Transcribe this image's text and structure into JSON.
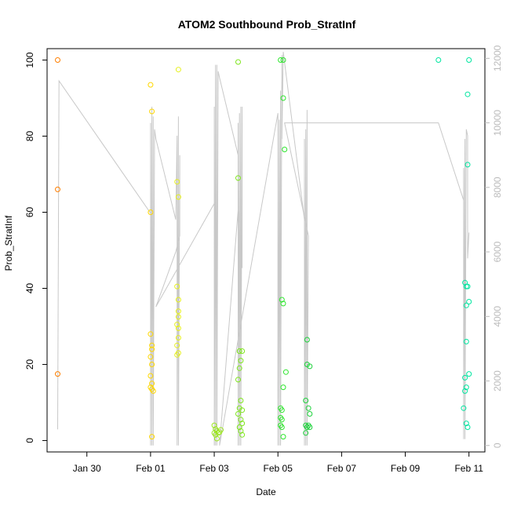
{
  "chart_data": {
    "type": "scatter",
    "title": "ATOM2 Southbound Prob_StratInf",
    "xlabel": "Date",
    "ylabel": "Prob_StratInf",
    "x_ticks": [
      "Jan 30",
      "Feb 01",
      "Feb 03",
      "Feb 05",
      "Feb 07",
      "Feb 09",
      "Feb 11"
    ],
    "y_ticks": [
      0,
      20,
      40,
      60,
      80,
      100
    ],
    "y2_ticks": [
      0,
      2000,
      4000,
      6000,
      8000,
      10000,
      12000
    ],
    "xlim": [
      "2017-01-28T18:00",
      "2017-02-11T12:00"
    ],
    "ylim": [
      -3,
      103
    ],
    "y2lim": [
      -200,
      12300
    ],
    "point_series": [
      {
        "color": "#FF7F00",
        "points": [
          [
            "2017-01-29T02:00",
            100
          ],
          [
            "2017-01-29T02:00",
            66
          ],
          [
            "2017-01-29T02:00",
            17.5
          ]
        ]
      },
      {
        "color": "#FFD700",
        "points": [
          [
            "2017-02-01T00:00",
            93.5
          ],
          [
            "2017-02-01T01:00",
            86.5
          ],
          [
            "2017-02-01T00:00",
            60
          ],
          [
            "2017-02-01T00:00",
            28
          ],
          [
            "2017-02-01T01:00",
            25
          ],
          [
            "2017-02-01T01:00",
            24
          ],
          [
            "2017-02-01T00:00",
            22
          ],
          [
            "2017-02-01T01:00",
            20
          ],
          [
            "2017-02-01T00:00",
            17
          ],
          [
            "2017-02-01T01:00",
            15
          ],
          [
            "2017-02-01T00:00",
            14
          ],
          [
            "2017-02-01T01:00",
            13.5
          ],
          [
            "2017-02-01T02:00",
            13
          ],
          [
            "2017-02-01T01:00",
            1
          ]
        ]
      },
      {
        "color": "#E6F01E",
        "points": [
          [
            "2017-02-01T21:00",
            97.5
          ],
          [
            "2017-02-01T20:00",
            68
          ],
          [
            "2017-02-01T21:00",
            64
          ],
          [
            "2017-02-01T20:00",
            40.5
          ],
          [
            "2017-02-01T21:00",
            37
          ],
          [
            "2017-02-01T21:00",
            34
          ],
          [
            "2017-02-01T21:00",
            32.5
          ],
          [
            "2017-02-01T20:00",
            30.5
          ],
          [
            "2017-02-01T21:00",
            29.5
          ],
          [
            "2017-02-01T20:00",
            25
          ],
          [
            "2017-02-01T21:00",
            23
          ],
          [
            "2017-02-01T20:00",
            22.5
          ],
          [
            "2017-02-01T21:00",
            27
          ]
        ]
      },
      {
        "color": "#9BE61E",
        "points": [
          [
            "2017-02-03T00:00",
            4
          ],
          [
            "2017-02-03T01:00",
            3
          ],
          [
            "2017-02-03T02:00",
            2.5
          ],
          [
            "2017-02-03T03:00",
            2
          ],
          [
            "2017-02-03T01:00",
            1.5
          ],
          [
            "2017-02-03T00:00",
            2
          ],
          [
            "2017-02-03T04:00",
            2.2
          ],
          [
            "2017-02-03T02:00",
            0.5
          ],
          [
            "2017-02-03T05:00",
            2.8
          ]
        ]
      },
      {
        "color": "#7FE61E",
        "points": [
          [
            "2017-02-03T18:00",
            99.5
          ],
          [
            "2017-02-03T18:00",
            69
          ],
          [
            "2017-02-03T19:00",
            23.5
          ],
          [
            "2017-02-03T21:00",
            23.5
          ],
          [
            "2017-02-03T20:00",
            21
          ],
          [
            "2017-02-03T19:00",
            19
          ],
          [
            "2017-02-03T18:00",
            16
          ],
          [
            "2017-02-03T20:00",
            10.5
          ],
          [
            "2017-02-03T19:00",
            8.5
          ],
          [
            "2017-02-03T21:00",
            8
          ],
          [
            "2017-02-03T18:00",
            7
          ],
          [
            "2017-02-03T20:00",
            5.5
          ],
          [
            "2017-02-03T21:00",
            4.5
          ],
          [
            "2017-02-03T19:00",
            3.5
          ],
          [
            "2017-02-03T20:00",
            2.5
          ],
          [
            "2017-02-03T21:00",
            1.5
          ]
        ]
      },
      {
        "color": "#2EE62E",
        "points": [
          [
            "2017-02-05T02:00",
            100
          ],
          [
            "2017-02-05T04:00",
            100
          ],
          [
            "2017-02-05T04:00",
            90
          ],
          [
            "2017-02-05T05:00",
            76.5
          ],
          [
            "2017-02-05T03:00",
            37
          ],
          [
            "2017-02-05T04:00",
            36
          ],
          [
            "2017-02-05T06:00",
            18
          ],
          [
            "2017-02-05T04:00",
            14
          ],
          [
            "2017-02-05T02:00",
            8.5
          ],
          [
            "2017-02-05T03:00",
            8
          ],
          [
            "2017-02-05T02:00",
            6
          ],
          [
            "2017-02-05T03:00",
            5.5
          ],
          [
            "2017-02-05T02:00",
            4
          ],
          [
            "2017-02-05T03:00",
            3.5
          ],
          [
            "2017-02-05T04:00",
            1
          ]
        ]
      },
      {
        "color": "#1ED23C",
        "points": [
          [
            "2017-02-05T22:00",
            26.5
          ],
          [
            "2017-02-05T22:00",
            20
          ],
          [
            "2017-02-06T00:00",
            19.5
          ],
          [
            "2017-02-05T21:00",
            10.5
          ],
          [
            "2017-02-05T23:00",
            8.5
          ],
          [
            "2017-02-06T00:00",
            7
          ],
          [
            "2017-02-05T21:00",
            4
          ],
          [
            "2017-02-05T22:00",
            3.5
          ],
          [
            "2017-02-05T23:00",
            4
          ],
          [
            "2017-02-06T00:00",
            3.5
          ],
          [
            "2017-02-05T21:00",
            2
          ]
        ]
      },
      {
        "color": "#00E6A0",
        "points": [
          [
            "2017-02-10T01:00",
            100
          ],
          [
            "2017-02-11T00:00",
            100
          ],
          [
            "2017-02-10T23:00",
            91
          ],
          [
            "2017-02-10T23:00",
            72.5
          ],
          [
            "2017-02-10T21:00",
            41.5
          ],
          [
            "2017-02-10T22:00",
            40.5
          ],
          [
            "2017-02-10T23:00",
            40.5
          ],
          [
            "2017-02-11T00:00",
            36.5
          ],
          [
            "2017-02-10T22:00",
            35.5
          ],
          [
            "2017-02-10T22:00",
            26
          ],
          [
            "2017-02-11T00:00",
            17.5
          ],
          [
            "2017-02-10T21:00",
            16.5
          ],
          [
            "2017-02-10T22:00",
            14
          ],
          [
            "2017-02-10T21:00",
            13
          ],
          [
            "2017-02-10T20:00",
            8.5
          ],
          [
            "2017-02-10T22:00",
            4.5
          ],
          [
            "2017-02-10T23:00",
            3.5
          ]
        ]
      }
    ],
    "line_series": {
      "axis": "right",
      "color": "#c8c8c8",
      "points": [
        [
          "2017-01-29T02:00",
          500
        ],
        [
          "2017-01-29T03:00",
          11300
        ],
        [
          "2017-02-01T00:00",
          7200
        ],
        [
          "2017-02-01T00:00",
          10000
        ],
        [
          "2017-02-01T00:00",
          0
        ],
        [
          "2017-02-01T01:00",
          10500
        ],
        [
          "2017-02-01T01:00",
          0
        ],
        [
          "2017-02-01T02:00",
          10200
        ],
        [
          "2017-02-01T02:00",
          0
        ],
        [
          "2017-02-01T03:00",
          9800
        ],
        [
          "2017-02-01T04:00",
          9500
        ],
        [
          "2017-02-01T19:00",
          7000
        ],
        [
          "2017-02-01T20:00",
          9600
        ],
        [
          "2017-02-01T20:00",
          0
        ],
        [
          "2017-02-01T21:00",
          10200
        ],
        [
          "2017-02-01T21:00",
          0
        ],
        [
          "2017-02-01T22:00",
          9000
        ],
        [
          "2017-02-01T22:00",
          6500
        ],
        [
          "2017-02-01T19:00",
          6000
        ],
        [
          "2017-02-01T04:00",
          4300
        ],
        [
          "2017-02-03T00:00",
          7500
        ],
        [
          "2017-02-03T00:00",
          10500
        ],
        [
          "2017-02-03T00:00",
          0
        ],
        [
          "2017-02-03T01:00",
          11800
        ],
        [
          "2017-02-03T01:00",
          0
        ],
        [
          "2017-02-03T02:00",
          11800
        ],
        [
          "2017-02-03T02:00",
          0
        ],
        [
          "2017-02-03T03:00",
          11600
        ],
        [
          "2017-02-03T04:00",
          11400
        ],
        [
          "2017-02-03T18:00",
          9000
        ],
        [
          "2017-02-03T18:00",
          10000
        ],
        [
          "2017-02-03T18:00",
          0
        ],
        [
          "2017-02-03T19:00",
          10300
        ],
        [
          "2017-02-03T19:00",
          0
        ],
        [
          "2017-02-03T20:00",
          10500
        ],
        [
          "2017-02-03T20:00",
          0
        ],
        [
          "2017-02-03T21:00",
          10500
        ],
        [
          "2017-02-03T21:00",
          5500
        ],
        [
          "2017-02-03T18:00",
          7300
        ],
        [
          "2017-02-03T04:00",
          0
        ],
        [
          "2017-02-05T00:00",
          10300
        ],
        [
          "2017-02-05T00:00",
          0
        ],
        [
          "2017-02-05T01:00",
          10100
        ],
        [
          "2017-02-05T01:00",
          0
        ],
        [
          "2017-02-05T02:00",
          11000
        ],
        [
          "2017-02-05T02:00",
          0
        ],
        [
          "2017-02-05T03:00",
          12100
        ],
        [
          "2017-02-05T03:00",
          9500
        ],
        [
          "2017-02-05T04:00",
          12200
        ],
        [
          "2017-02-05T20:00",
          7000
        ],
        [
          "2017-02-05T20:00",
          9500
        ],
        [
          "2017-02-05T20:00",
          0
        ],
        [
          "2017-02-05T21:00",
          9800
        ],
        [
          "2017-02-05T21:00",
          0
        ],
        [
          "2017-02-05T22:00",
          10400
        ],
        [
          "2017-02-05T22:00",
          0
        ],
        [
          "2017-02-05T23:00",
          6500
        ],
        [
          "2017-02-05T05:00",
          10000
        ],
        [
          "2017-02-10T01:00",
          10000
        ],
        [
          "2017-02-10T20:00",
          7600
        ],
        [
          "2017-02-10T20:00",
          8600
        ],
        [
          "2017-02-10T20:00",
          200
        ],
        [
          "2017-02-10T21:00",
          9500
        ],
        [
          "2017-02-10T21:00",
          200
        ],
        [
          "2017-02-10T22:00",
          9800
        ],
        [
          "2017-02-10T23:00",
          9600
        ],
        [
          "2017-02-10T23:00",
          5800
        ],
        [
          "2017-02-11T00:00",
          6600
        ]
      ]
    }
  }
}
